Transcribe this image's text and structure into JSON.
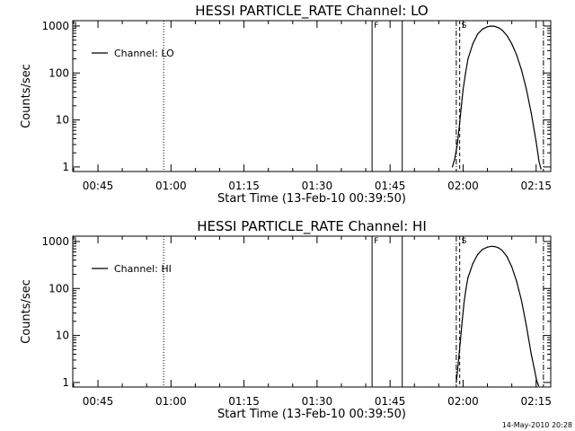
{
  "footer": {
    "timestamp": "14-May-2010 20:28"
  },
  "chart_data": [
    {
      "type": "line",
      "title": "HESSI PARTICLE_RATE Channel: LO",
      "xlabel": "Start Time (13-Feb-10 00:39:50)",
      "ylabel": "Counts/sec",
      "yscale": "log",
      "xlim_minutes": [
        39.83,
        138.0
      ],
      "ylim": [
        0.8,
        1300
      ],
      "grid": false,
      "legend": {
        "label": "Channel: LO",
        "placement": "top-left"
      },
      "x_tick_labels": [
        "00:45",
        "01:00",
        "01:15",
        "01:30",
        "01:45",
        "02:00",
        "02:15"
      ],
      "x_tick_minutes": [
        45,
        60,
        75,
        90,
        105,
        120,
        135
      ],
      "y_tick_labels": [
        "1",
        "10",
        "100",
        "1000"
      ],
      "y_tick_values": [
        1,
        10,
        100,
        1000
      ],
      "annotations": [
        {
          "type": "line",
          "style": "dotted",
          "x_minute": 58.5,
          "label": ""
        },
        {
          "type": "line",
          "style": "solid",
          "x_minute": 101.3,
          "label": "F"
        },
        {
          "type": "line",
          "style": "solid",
          "x_minute": 107.5,
          "label": ""
        },
        {
          "type": "line",
          "style": "dashdot",
          "x_minute": 118.6,
          "label": ""
        },
        {
          "type": "line",
          "style": "dashed",
          "x_minute": 119.3,
          "label": "S"
        },
        {
          "type": "line",
          "style": "dashdot",
          "x_minute": 136.5,
          "label": ""
        }
      ],
      "series": [
        {
          "name": "Channel: LO",
          "x_minutes": [
            117.8,
            118.3,
            118.8,
            119.2,
            119.6,
            120.0,
            120.5,
            121.0,
            122.0,
            123.0,
            124.0,
            125.0,
            125.8,
            126.5,
            127.3,
            128.0,
            129.0,
            130.0,
            131.0,
            132.0,
            133.0,
            134.0,
            135.0,
            135.6,
            136.0
          ],
          "values": [
            1,
            1.5,
            3,
            7,
            18,
            45,
            100,
            200,
            420,
            680,
            860,
            970,
            1000,
            980,
            920,
            820,
            630,
            420,
            240,
            115,
            45,
            14,
            3.5,
            1.3,
            0.9
          ]
        }
      ]
    },
    {
      "type": "line",
      "title": "HESSI PARTICLE_RATE Channel: HI",
      "xlabel": "Start Time (13-Feb-10 00:39:50)",
      "ylabel": "Counts/sec",
      "yscale": "log",
      "xlim_minutes": [
        39.83,
        138.0
      ],
      "ylim": [
        0.8,
        1300
      ],
      "grid": false,
      "legend": {
        "label": "Channel: HI",
        "placement": "top-left"
      },
      "x_tick_labels": [
        "00:45",
        "01:00",
        "01:15",
        "01:30",
        "01:45",
        "02:00",
        "02:15"
      ],
      "x_tick_minutes": [
        45,
        60,
        75,
        90,
        105,
        120,
        135
      ],
      "y_tick_labels": [
        "1",
        "10",
        "100",
        "1000"
      ],
      "y_tick_values": [
        1,
        10,
        100,
        1000
      ],
      "annotations": [
        {
          "type": "line",
          "style": "dotted",
          "x_minute": 58.5,
          "label": ""
        },
        {
          "type": "line",
          "style": "solid",
          "x_minute": 101.3,
          "label": "F"
        },
        {
          "type": "line",
          "style": "solid",
          "x_minute": 107.5,
          "label": ""
        },
        {
          "type": "line",
          "style": "dashdot",
          "x_minute": 118.6,
          "label": ""
        },
        {
          "type": "line",
          "style": "dashed",
          "x_minute": 119.3,
          "label": "S"
        },
        {
          "type": "line",
          "style": "dashdot",
          "x_minute": 136.5,
          "label": ""
        }
      ],
      "series": [
        {
          "name": "Channel: HI",
          "x_minutes": [
            118.6,
            119.0,
            119.4,
            119.8,
            120.2,
            120.6,
            121.0,
            122.0,
            123.0,
            124.0,
            125.0,
            125.8,
            126.5,
            127.3,
            128.0,
            129.0,
            130.0,
            131.0,
            132.0,
            133.0,
            134.0,
            134.6,
            135.1,
            135.5
          ],
          "values": [
            1,
            2.5,
            7,
            20,
            50,
            100,
            170,
            340,
            530,
            680,
            760,
            790,
            780,
            730,
            650,
            480,
            290,
            140,
            55,
            16,
            4,
            2,
            1.1,
            0.85
          ]
        }
      ]
    }
  ]
}
